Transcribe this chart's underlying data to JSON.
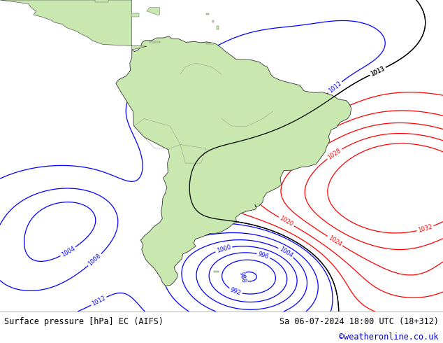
{
  "title_left": "Surface pressure [hPa] EC (AIFS)",
  "title_right": "Sa 06-07-2024 18:00 UTC (18+312)",
  "copyright": "©weatheronline.co.uk",
  "background_color": "#d0e4ee",
  "land_color": "#c8e8b0",
  "border_color": "#888888",
  "fig_width": 6.34,
  "fig_height": 4.9,
  "dpi": 100,
  "copyright_color": "#0000cc",
  "title_fontsize": 8.5,
  "contour_color_low": "#0000ff",
  "contour_color_high": "#ff0000",
  "contour_color_black": "#000000",
  "lon_min": -103,
  "lon_max": -17,
  "lat_min": -62,
  "lat_max": 22
}
